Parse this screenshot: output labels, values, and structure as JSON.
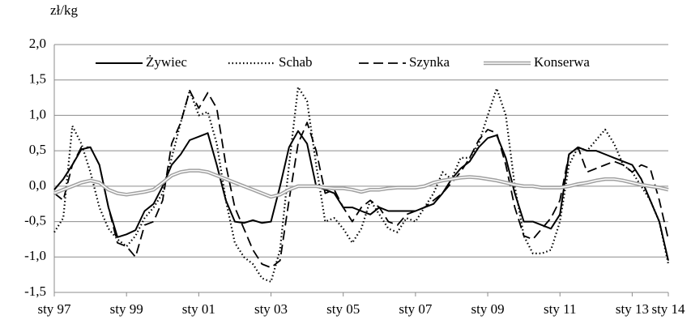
{
  "chart_data": {
    "type": "line",
    "y_label": "zł/kg",
    "categories": [
      "sty 97",
      null,
      null,
      null,
      null,
      null,
      null,
      null,
      "sty 99",
      null,
      null,
      null,
      null,
      null,
      null,
      null,
      "sty 01",
      null,
      null,
      null,
      null,
      null,
      null,
      null,
      "sty 03",
      null,
      null,
      null,
      null,
      null,
      null,
      null,
      "sty 05",
      null,
      null,
      null,
      null,
      null,
      null,
      null,
      "sty 07",
      null,
      null,
      null,
      null,
      null,
      null,
      null,
      "sty 09",
      null,
      null,
      null,
      null,
      null,
      null,
      null,
      "sty 11",
      null,
      null,
      null,
      null,
      null,
      null,
      null,
      "sty 13",
      null,
      null,
      null,
      "sty 14"
    ],
    "series": [
      {
        "name": "Żywiec",
        "color": "#000000",
        "style": "solid",
        "values": [
          -0.05,
          0.1,
          0.3,
          0.52,
          0.55,
          0.3,
          -0.3,
          -0.72,
          -0.68,
          -0.62,
          -0.35,
          -0.25,
          0.0,
          0.3,
          0.45,
          0.65,
          0.7,
          0.75,
          0.3,
          -0.2,
          -0.5,
          -0.52,
          -0.48,
          -0.52,
          -0.5,
          0.0,
          0.55,
          0.78,
          0.6,
          0.0,
          -0.05,
          -0.1,
          -0.3,
          -0.3,
          -0.35,
          -0.4,
          -0.3,
          -0.35,
          -0.35,
          -0.35,
          -0.35,
          -0.3,
          -0.25,
          -0.1,
          0.1,
          0.25,
          0.35,
          0.55,
          0.68,
          0.72,
          0.4,
          -0.1,
          -0.5,
          -0.5,
          -0.55,
          -0.6,
          -0.4,
          0.45,
          0.55,
          0.5,
          0.5,
          0.45,
          0.4,
          0.35,
          0.3,
          0.1,
          -0.2,
          -0.5,
          -1.05
        ]
      },
      {
        "name": "Schab",
        "color": "#000000",
        "style": "dotted",
        "values": [
          -0.65,
          -0.45,
          0.85,
          0.6,
          0.2,
          -0.3,
          -0.6,
          -0.75,
          -0.85,
          -0.7,
          -0.45,
          -0.3,
          -0.1,
          0.4,
          0.9,
          1.35,
          1.0,
          1.05,
          0.6,
          -0.2,
          -0.8,
          -1.0,
          -1.1,
          -1.3,
          -1.35,
          -0.9,
          0.3,
          1.4,
          1.2,
          0.3,
          -0.5,
          -0.45,
          -0.6,
          -0.8,
          -0.6,
          -0.2,
          -0.4,
          -0.6,
          -0.65,
          -0.45,
          -0.5,
          -0.3,
          -0.1,
          0.2,
          0.1,
          0.4,
          0.4,
          0.6,
          1.0,
          1.38,
          1.0,
          0.0,
          -0.7,
          -0.95,
          -0.95,
          -0.9,
          -0.5,
          0.3,
          0.55,
          0.5,
          0.65,
          0.8,
          0.6,
          0.3,
          0.2,
          0.0,
          -0.2,
          -0.5,
          -1.1
        ]
      },
      {
        "name": "Szynka",
        "color": "#000000",
        "style": "dashed",
        "values": [
          -0.1,
          -0.2,
          0.3,
          0.55,
          0.55,
          0.3,
          -0.3,
          -0.8,
          -0.85,
          -1.0,
          -0.55,
          -0.5,
          -0.2,
          0.6,
          0.9,
          1.35,
          1.1,
          1.32,
          1.1,
          0.3,
          -0.3,
          -0.6,
          -0.9,
          -1.1,
          -1.15,
          -1.05,
          -0.2,
          0.6,
          0.9,
          0.5,
          -0.1,
          -0.05,
          -0.3,
          -0.5,
          -0.3,
          -0.2,
          -0.3,
          -0.5,
          -0.55,
          -0.4,
          -0.35,
          -0.3,
          -0.2,
          -0.1,
          0.05,
          0.2,
          0.4,
          0.65,
          0.8,
          0.75,
          0.3,
          -0.3,
          -0.7,
          -0.75,
          -0.6,
          -0.45,
          -0.2,
          0.45,
          0.55,
          0.2,
          0.25,
          0.3,
          0.35,
          0.3,
          0.2,
          0.3,
          0.25,
          -0.2,
          -0.75
        ]
      },
      {
        "name": "Konserwa",
        "color": "#a0a0a0",
        "style": "double",
        "values": [
          -0.1,
          -0.05,
          0.0,
          0.05,
          0.08,
          0.05,
          -0.05,
          -0.1,
          -0.12,
          -0.1,
          -0.08,
          -0.05,
          0.05,
          0.15,
          0.2,
          0.22,
          0.22,
          0.2,
          0.15,
          0.1,
          0.05,
          0.0,
          -0.05,
          -0.1,
          -0.15,
          -0.12,
          -0.05,
          0.0,
          0.0,
          0.0,
          -0.02,
          -0.03,
          -0.03,
          -0.05,
          -0.08,
          -0.05,
          -0.05,
          -0.03,
          -0.02,
          -0.02,
          -0.02,
          0.0,
          0.05,
          0.08,
          0.1,
          0.12,
          0.13,
          0.12,
          0.1,
          0.08,
          0.05,
          0.02,
          0.0,
          0.0,
          -0.02,
          -0.02,
          -0.02,
          0.0,
          0.03,
          0.05,
          0.08,
          0.1,
          0.1,
          0.08,
          0.05,
          0.02,
          0.0,
          -0.02,
          -0.05
        ]
      }
    ],
    "ylim": [
      -1.5,
      2.0
    ],
    "yticks": [
      {
        "value": -1.5,
        "label": "-1,5"
      },
      {
        "value": -1.0,
        "label": "-1,0"
      },
      {
        "value": -0.5,
        "label": "-0,5"
      },
      {
        "value": 0,
        "label": "0,0"
      },
      {
        "value": 0.5,
        "label": "0,5"
      },
      {
        "value": 1.0,
        "label": "1,0"
      },
      {
        "value": 1.5,
        "label": "1,5"
      },
      {
        "value": 2.0,
        "label": "2,0"
      }
    ],
    "grid": true,
    "legend": "top"
  }
}
